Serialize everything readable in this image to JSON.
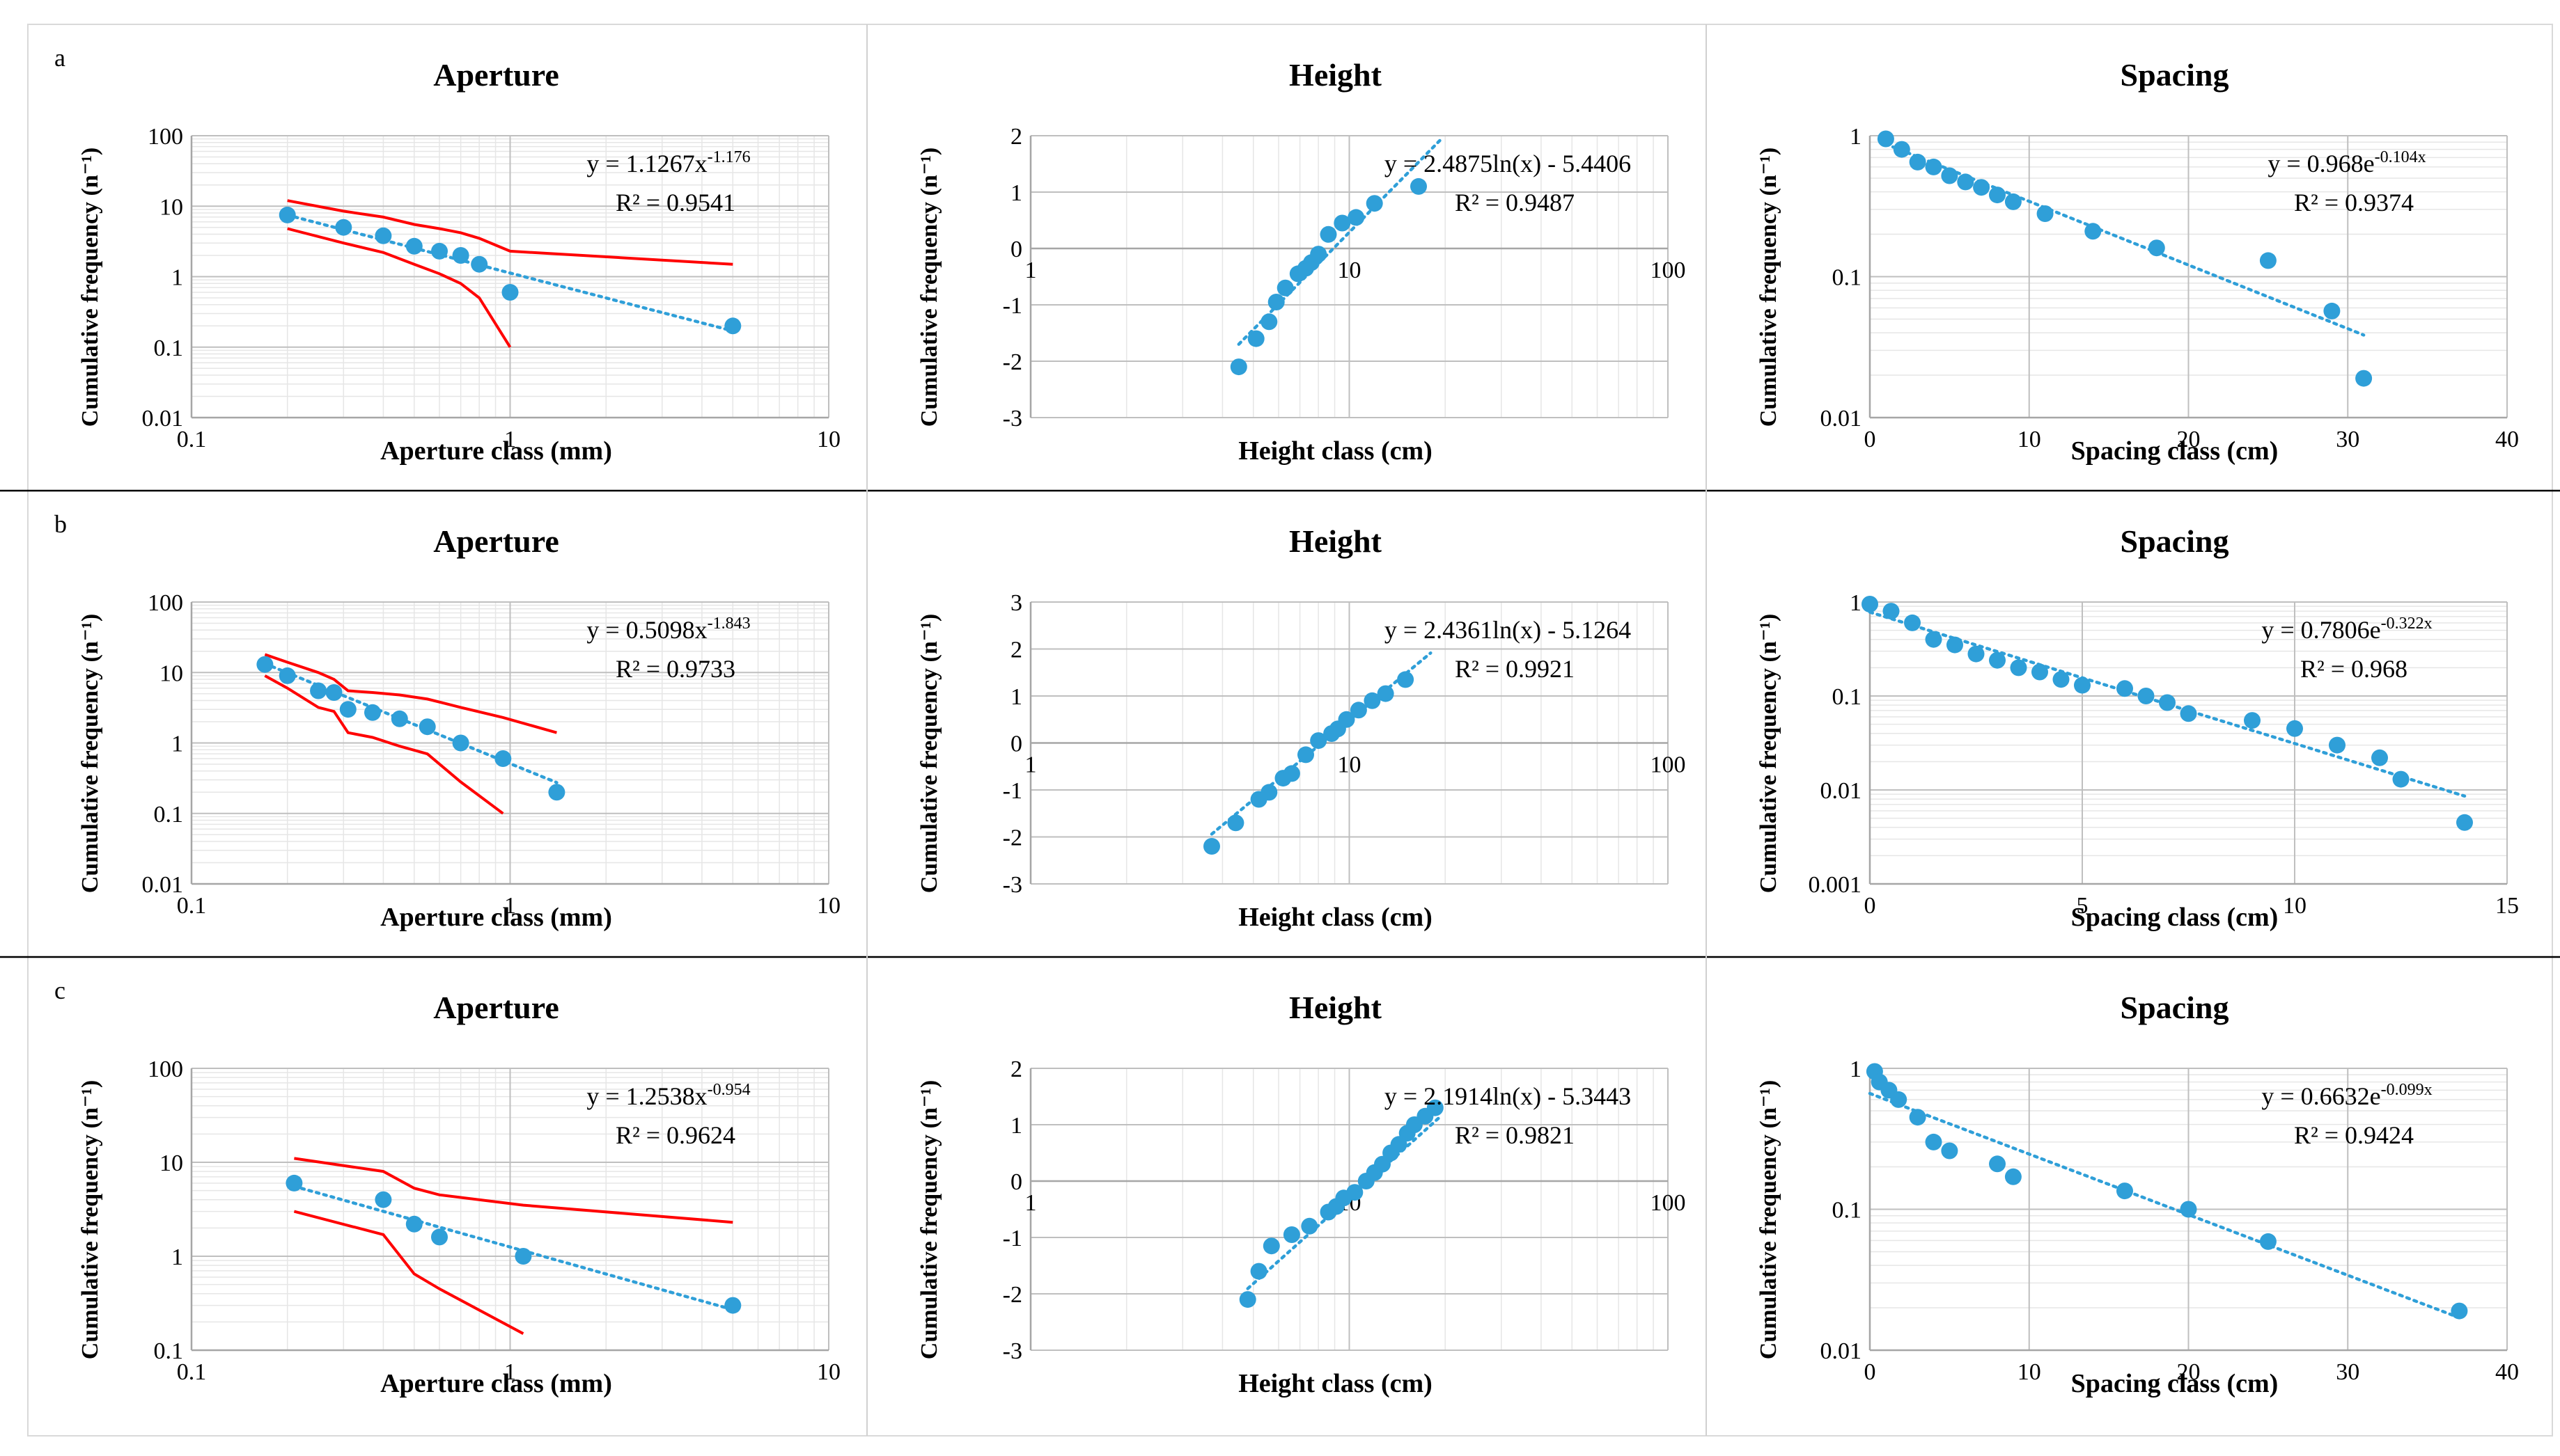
{
  "colors": {
    "marker": "#2f9fd8",
    "trend": "#2f9fd8",
    "bound": "#ff0000",
    "grid_major": "#bfbfbf",
    "grid_minor": "#e6e6e6",
    "divider": "#000000",
    "text": "#000000"
  },
  "rows": [
    {
      "label": "a"
    },
    {
      "label": "b"
    },
    {
      "label": "c"
    }
  ],
  "chart_data": [
    {
      "row": 0,
      "col": 0,
      "type": "scatter",
      "title": "Aperture",
      "xlabel": "Aperture class (mm)",
      "ylabel": "Cumulative frequency (n⁻¹)",
      "xscale": "log",
      "yscale": "log",
      "xlim": [
        0.1,
        10
      ],
      "ylim": [
        0.01,
        100
      ],
      "xticks": [
        "0.1",
        "1",
        "10"
      ],
      "yticks": [
        "0.01",
        "0.1",
        "1",
        "10",
        "100"
      ],
      "grid": true,
      "trendline": "power",
      "equation": {
        "base": "y = 1.1267x",
        "exp": "-1.176",
        "r2": "R² = 0.9541"
      },
      "trend_coef": {
        "a": 1.1267,
        "b": -1.176
      },
      "trend_range": [
        0.2,
        5
      ],
      "points": [
        [
          0.2,
          7.5
        ],
        [
          0.3,
          5
        ],
        [
          0.4,
          3.8
        ],
        [
          0.5,
          2.7
        ],
        [
          0.6,
          2.3
        ],
        [
          0.7,
          2.0
        ],
        [
          0.8,
          1.5
        ],
        [
          1.0,
          0.6
        ],
        [
          5.0,
          0.2
        ]
      ],
      "upper_bound": [
        [
          0.2,
          12
        ],
        [
          0.3,
          8.5
        ],
        [
          0.4,
          7
        ],
        [
          0.5,
          5.5
        ],
        [
          0.6,
          4.8
        ],
        [
          0.7,
          4.2
        ],
        [
          0.8,
          3.5
        ],
        [
          1.0,
          2.3
        ],
        [
          5.0,
          1.5
        ]
      ],
      "lower_bound": [
        [
          0.2,
          4.8
        ],
        [
          0.3,
          3.0
        ],
        [
          0.4,
          2.2
        ],
        [
          0.5,
          1.5
        ],
        [
          0.6,
          1.1
        ],
        [
          0.7,
          0.8
        ],
        [
          0.8,
          0.5
        ],
        [
          1.0,
          0.1
        ]
      ]
    },
    {
      "row": 0,
      "col": 1,
      "type": "scatter",
      "title": "Height",
      "xlabel": "Height class (cm)",
      "ylabel": "Cumulative frequency (n⁻¹)",
      "xscale": "log",
      "yscale": "linear",
      "xlim": [
        1,
        100
      ],
      "ylim": [
        -3,
        2
      ],
      "xticks": [
        "1",
        "10",
        "100"
      ],
      "yticks": [
        "-3",
        "-2",
        "-1",
        "0",
        "1",
        "2"
      ],
      "grid": true,
      "trendline": "logarithmic",
      "equation": {
        "base": "y = 2.4875ln(x) - 5.4406",
        "exp": "",
        "r2": "R² = 0.9487"
      },
      "trend_coef": {
        "a": 2.4875,
        "b": -5.4406
      },
      "trend_range": [
        4.5,
        20
      ],
      "points": [
        [
          4.5,
          -2.1
        ],
        [
          5.1,
          -1.6
        ],
        [
          5.6,
          -1.3
        ],
        [
          5.9,
          -0.95
        ],
        [
          6.3,
          -0.7
        ],
        [
          6.9,
          -0.45
        ],
        [
          7.3,
          -0.35
        ],
        [
          7.6,
          -0.25
        ],
        [
          8.0,
          -0.1
        ],
        [
          8.6,
          0.25
        ],
        [
          9.5,
          0.45
        ],
        [
          10.5,
          0.55
        ],
        [
          12.0,
          0.8
        ],
        [
          16.5,
          1.1
        ]
      ]
    },
    {
      "row": 0,
      "col": 2,
      "type": "scatter",
      "title": "Spacing",
      "xlabel": "Spacing class (cm)",
      "ylabel": "Cumulative frequency (n⁻¹)",
      "xscale": "linear",
      "yscale": "log",
      "xlim": [
        0,
        40
      ],
      "ylim": [
        0.01,
        1
      ],
      "xticks": [
        "0",
        "10",
        "20",
        "30",
        "40"
      ],
      "yticks": [
        "0.01",
        "0.1",
        "1"
      ],
      "grid": true,
      "trendline": "exponential",
      "equation": {
        "base": "y = 0.968e",
        "exp": "-0.104x",
        "r2": "R² = 0.9374"
      },
      "trend_coef": {
        "a": 0.968,
        "b": -0.104
      },
      "trend_range": [
        1,
        31
      ],
      "points": [
        [
          1,
          0.95
        ],
        [
          2,
          0.8
        ],
        [
          3,
          0.65
        ],
        [
          4,
          0.6
        ],
        [
          5,
          0.52
        ],
        [
          6,
          0.47
        ],
        [
          7,
          0.43
        ],
        [
          8,
          0.38
        ],
        [
          9,
          0.34
        ],
        [
          11,
          0.28
        ],
        [
          14,
          0.21
        ],
        [
          18,
          0.16
        ],
        [
          25,
          0.13
        ],
        [
          29,
          0.057
        ],
        [
          31,
          0.019
        ]
      ]
    },
    {
      "row": 1,
      "col": 0,
      "type": "scatter",
      "title": "Aperture",
      "xlabel": "Aperture class (mm)",
      "ylabel": "Cumulative frequency (n⁻¹)",
      "xscale": "log",
      "yscale": "log",
      "xlim": [
        0.1,
        10
      ],
      "ylim": [
        0.01,
        100
      ],
      "xticks": [
        "0.1",
        "1",
        "10"
      ],
      "yticks": [
        "0.01",
        "0.1",
        "1",
        "10",
        "100"
      ],
      "grid": true,
      "trendline": "power",
      "equation": {
        "base": "y = 0.5098x",
        "exp": "-1.843",
        "r2": "R² = 0.9733"
      },
      "trend_coef": {
        "a": 0.5098,
        "b": -1.843
      },
      "trend_range": [
        0.17,
        1.4
      ],
      "points": [
        [
          0.17,
          13
        ],
        [
          0.2,
          9
        ],
        [
          0.25,
          5.5
        ],
        [
          0.28,
          5.2
        ],
        [
          0.31,
          3.0
        ],
        [
          0.37,
          2.7
        ],
        [
          0.45,
          2.2
        ],
        [
          0.55,
          1.7
        ],
        [
          0.7,
          1.0
        ],
        [
          0.95,
          0.6
        ],
        [
          1.4,
          0.2
        ]
      ],
      "upper_bound": [
        [
          0.17,
          18
        ],
        [
          0.2,
          14
        ],
        [
          0.25,
          10
        ],
        [
          0.28,
          8
        ],
        [
          0.31,
          5.5
        ],
        [
          0.37,
          5.2
        ],
        [
          0.45,
          4.8
        ],
        [
          0.55,
          4.2
        ],
        [
          0.7,
          3.2
        ],
        [
          0.95,
          2.3
        ],
        [
          1.4,
          1.4
        ]
      ],
      "lower_bound": [
        [
          0.17,
          9
        ],
        [
          0.2,
          6
        ],
        [
          0.25,
          3.2
        ],
        [
          0.28,
          2.8
        ],
        [
          0.31,
          1.4
        ],
        [
          0.37,
          1.2
        ],
        [
          0.45,
          0.9
        ],
        [
          0.55,
          0.7
        ],
        [
          0.7,
          0.28
        ],
        [
          0.95,
          0.1
        ]
      ]
    },
    {
      "row": 1,
      "col": 1,
      "type": "scatter",
      "title": "Height",
      "xlabel": "Height class (cm)",
      "ylabel": "Cumulative frequency (n⁻¹)",
      "xscale": "log",
      "yscale": "linear",
      "xlim": [
        1,
        100
      ],
      "ylim": [
        -3,
        3
      ],
      "xticks": [
        "1",
        "10",
        "100"
      ],
      "yticks": [
        "-3",
        "-2",
        "-1",
        "0",
        "1",
        "2",
        "3"
      ],
      "grid": true,
      "trendline": "logarithmic",
      "equation": {
        "base": "y = 2.4361ln(x) - 5.1264",
        "exp": "",
        "r2": "R² = 0.9921"
      },
      "trend_coef": {
        "a": 2.4361,
        "b": -5.1264
      },
      "trend_range": [
        3.7,
        18
      ],
      "points": [
        [
          3.7,
          -2.2
        ],
        [
          4.4,
          -1.7
        ],
        [
          5.2,
          -1.2
        ],
        [
          5.6,
          -1.05
        ],
        [
          6.2,
          -0.75
        ],
        [
          6.6,
          -0.65
        ],
        [
          7.3,
          -0.25
        ],
        [
          8.0,
          0.05
        ],
        [
          8.8,
          0.2
        ],
        [
          9.2,
          0.3
        ],
        [
          9.8,
          0.5
        ],
        [
          10.7,
          0.7
        ],
        [
          11.8,
          0.9
        ],
        [
          13.0,
          1.05
        ],
        [
          15.0,
          1.35
        ]
      ]
    },
    {
      "row": 1,
      "col": 2,
      "type": "scatter",
      "title": "Spacing",
      "xlabel": "Spacing class (cm)",
      "ylabel": "Cumulative frequency (n⁻¹)",
      "xscale": "linear",
      "yscale": "log",
      "xlim": [
        0,
        15
      ],
      "ylim": [
        0.001,
        1
      ],
      "xticks": [
        "0",
        "5",
        "10",
        "15"
      ],
      "yticks": [
        "0.001",
        "0.01",
        "0.1",
        "1"
      ],
      "grid": true,
      "trendline": "exponential",
      "equation": {
        "base": "y = 0.7806e",
        "exp": "-0.322x",
        "r2": "R² = 0.968"
      },
      "trend_coef": {
        "a": 0.7806,
        "b": -0.322
      },
      "trend_range": [
        0,
        14
      ],
      "points": [
        [
          0,
          0.95
        ],
        [
          0.5,
          0.8
        ],
        [
          1,
          0.6
        ],
        [
          1.5,
          0.4
        ],
        [
          2,
          0.35
        ],
        [
          2.5,
          0.28
        ],
        [
          3,
          0.24
        ],
        [
          3.5,
          0.2
        ],
        [
          4,
          0.18
        ],
        [
          4.5,
          0.15
        ],
        [
          5,
          0.13
        ],
        [
          6,
          0.12
        ],
        [
          6.5,
          0.1
        ],
        [
          7,
          0.085
        ],
        [
          7.5,
          0.065
        ],
        [
          9,
          0.055
        ],
        [
          10,
          0.045
        ],
        [
          11,
          0.03
        ],
        [
          12,
          0.022
        ],
        [
          12.5,
          0.013
        ],
        [
          14,
          0.0045
        ]
      ]
    },
    {
      "row": 2,
      "col": 0,
      "type": "scatter",
      "title": "Aperture",
      "xlabel": "Aperture class (mm)",
      "ylabel": "Cumulative frequency (n⁻¹)",
      "xscale": "log",
      "yscale": "log",
      "xlim": [
        0.1,
        10
      ],
      "ylim": [
        0.1,
        100
      ],
      "xticks": [
        "0.1",
        "1",
        "10"
      ],
      "yticks": [
        "0.1",
        "1",
        "10",
        "100"
      ],
      "grid": true,
      "trendline": "power",
      "equation": {
        "base": "y = 1.2538x",
        "exp": "-0.954",
        "r2": "R² = 0.9624"
      },
      "trend_coef": {
        "a": 1.2538,
        "b": -0.954
      },
      "trend_range": [
        0.21,
        5
      ],
      "points": [
        [
          0.21,
          6
        ],
        [
          0.4,
          4
        ],
        [
          0.5,
          2.2
        ],
        [
          0.6,
          1.6
        ],
        [
          1.1,
          1.0
        ],
        [
          5.0,
          0.3
        ]
      ],
      "upper_bound": [
        [
          0.21,
          11
        ],
        [
          0.4,
          8
        ],
        [
          0.5,
          5.3
        ],
        [
          0.6,
          4.5
        ],
        [
          1.1,
          3.5
        ],
        [
          5.0,
          2.3
        ]
      ],
      "lower_bound": [
        [
          0.21,
          3
        ],
        [
          0.4,
          1.7
        ],
        [
          0.5,
          0.65
        ],
        [
          0.6,
          0.45
        ],
        [
          1.1,
          0.15
        ]
      ]
    },
    {
      "row": 2,
      "col": 1,
      "type": "scatter",
      "title": "Height",
      "xlabel": "Height class (cm)",
      "ylabel": "Cumulative frequency (n⁻¹)",
      "xscale": "log",
      "yscale": "linear",
      "xlim": [
        1,
        100
      ],
      "ylim": [
        -3,
        2
      ],
      "xticks": [
        "1",
        "10",
        "100"
      ],
      "yticks": [
        "-3",
        "-2",
        "-1",
        "0",
        "1",
        "2"
      ],
      "grid": true,
      "trendline": "logarithmic",
      "equation": {
        "base": "y = 2.1914ln(x) - 5.3443",
        "exp": "",
        "r2": "R² = 0.9821"
      },
      "trend_coef": {
        "a": 2.1914,
        "b": -5.3443
      },
      "trend_range": [
        4.8,
        19.5
      ],
      "points": [
        [
          4.8,
          -2.1
        ],
        [
          5.2,
          -1.6
        ],
        [
          5.7,
          -1.15
        ],
        [
          6.6,
          -0.95
        ],
        [
          7.5,
          -0.8
        ],
        [
          8.6,
          -0.55
        ],
        [
          9.1,
          -0.45
        ],
        [
          9.6,
          -0.3
        ],
        [
          10.4,
          -0.2
        ],
        [
          11.3,
          0.0
        ],
        [
          12.0,
          0.15
        ],
        [
          12.7,
          0.3
        ],
        [
          13.5,
          0.5
        ],
        [
          14.3,
          0.65
        ],
        [
          15.2,
          0.85
        ],
        [
          16.0,
          1.0
        ],
        [
          17.3,
          1.15
        ],
        [
          18.6,
          1.3
        ]
      ]
    },
    {
      "row": 2,
      "col": 2,
      "type": "scatter",
      "title": "Spacing",
      "xlabel": "Spacing class (cm)",
      "ylabel": "Cumulative frequency (n⁻¹)",
      "xscale": "linear",
      "yscale": "log",
      "xlim": [
        0,
        40
      ],
      "ylim": [
        0.01,
        1
      ],
      "xticks": [
        "0",
        "10",
        "20",
        "30",
        "40"
      ],
      "yticks": [
        "0.01",
        "0.1",
        "1"
      ],
      "grid": true,
      "trendline": "exponential",
      "equation": {
        "base": "y = 0.6632e",
        "exp": "-0.099x",
        "r2": "R² = 0.9424"
      },
      "trend_coef": {
        "a": 0.6632,
        "b": -0.099
      },
      "trend_range": [
        0,
        37
      ],
      "points": [
        [
          0.3,
          0.95
        ],
        [
          0.6,
          0.8
        ],
        [
          1.2,
          0.7
        ],
        [
          1.8,
          0.6
        ],
        [
          3,
          0.45
        ],
        [
          4,
          0.3
        ],
        [
          5,
          0.26
        ],
        [
          8,
          0.21
        ],
        [
          9,
          0.17
        ],
        [
          16,
          0.135
        ],
        [
          20,
          0.1
        ],
        [
          25,
          0.059
        ],
        [
          37,
          0.019
        ]
      ]
    }
  ]
}
